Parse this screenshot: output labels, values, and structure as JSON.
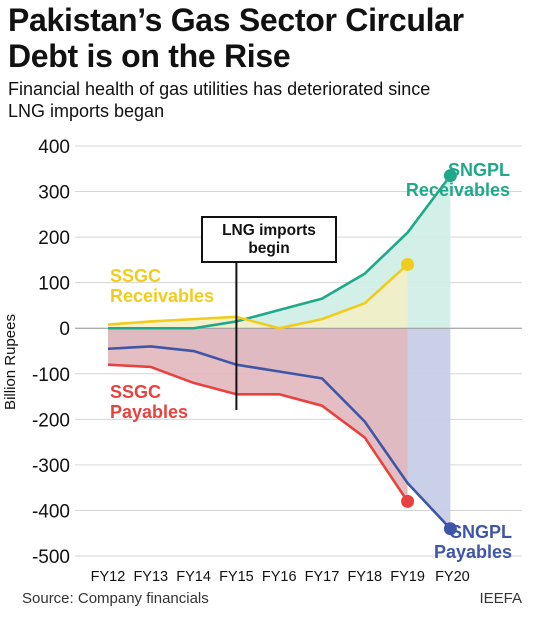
{
  "header": {
    "title_line1": "Pakistan’s Gas Sector Circular",
    "title_line2": "Debt is on the Rise",
    "subtitle_line1": "Financial health of gas utilities has deteriorated since",
    "subtitle_line2": "LNG imports began"
  },
  "footer": {
    "source": "Source: Company financials",
    "brand": "IEEFA"
  },
  "chart_data": {
    "type": "line",
    "x": [
      "FY12",
      "FY13",
      "FY14",
      "FY15",
      "FY16",
      "FY17",
      "FY18",
      "FY19",
      "FY20"
    ],
    "ylabel": "Billion Rupees",
    "ylim": [
      -500,
      400
    ],
    "yticks": [
      400,
      300,
      200,
      100,
      0,
      -100,
      -200,
      -300,
      -400,
      -500
    ],
    "grid": true,
    "series": [
      {
        "name": "SNGPL Receivables",
        "label_lines": [
          "SNGPL",
          "Receivables"
        ],
        "color": "#1fa88a",
        "fill": "#cdeee6",
        "values": [
          0,
          0,
          0,
          15,
          40,
          65,
          120,
          210,
          335
        ]
      },
      {
        "name": "SSGC Receivables",
        "label_lines": [
          "SSGC",
          "Receivables"
        ],
        "color": "#f2cc1d",
        "fill": "#f4efc4",
        "values": [
          8,
          15,
          20,
          25,
          0,
          20,
          55,
          140,
          null
        ]
      },
      {
        "name": "SSGC Payables",
        "label_lines": [
          "SSGC",
          "Payables"
        ],
        "color": "#e8423f",
        "fill": "#e2b7bd",
        "values": [
          -80,
          -85,
          -120,
          -145,
          -145,
          -170,
          -240,
          -380,
          null
        ]
      },
      {
        "name": "SNGPL Payables",
        "label_lines": [
          "SNGPL",
          "Payables"
        ],
        "color": "#3f56a8",
        "fill": "#c7cde6",
        "values": [
          -45,
          -40,
          -50,
          -80,
          -95,
          -110,
          -205,
          -340,
          -440
        ]
      }
    ],
    "annotation": {
      "lines": [
        "LNG imports",
        "begin"
      ],
      "x": "FY15"
    }
  }
}
